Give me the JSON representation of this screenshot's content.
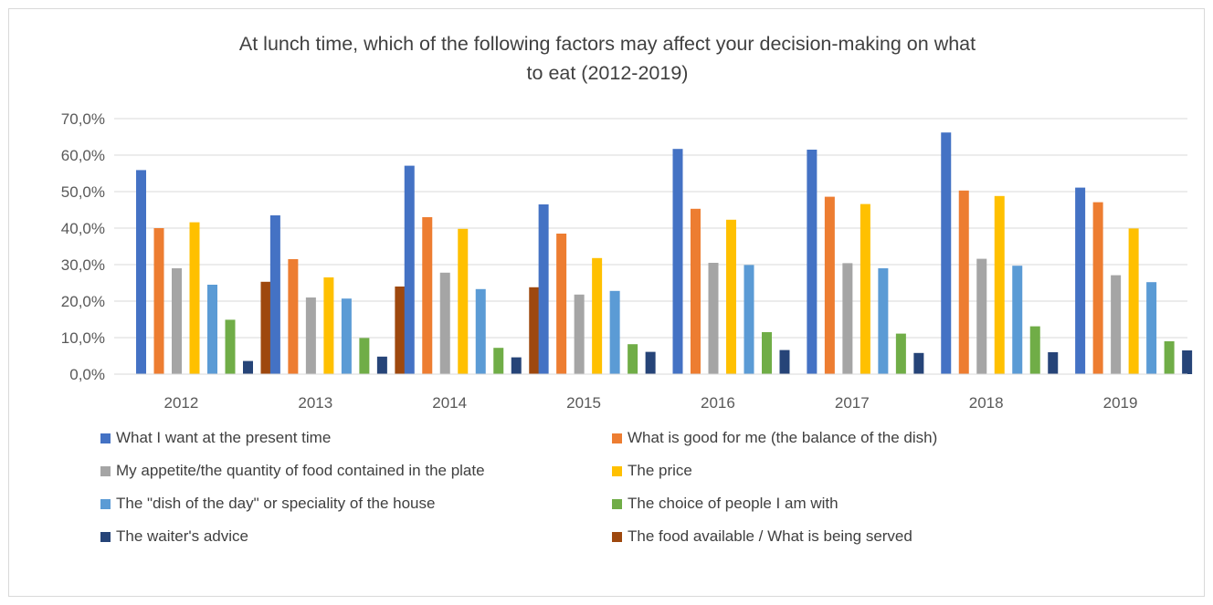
{
  "chart_data": {
    "type": "bar",
    "title": "At lunch time, which of the following factors may affect your decision-making on what to eat (2012-2019)",
    "title_lines": [
      "At lunch time, which of the following factors may affect your decision-making on what",
      "to eat (2012-2019)"
    ],
    "categories": [
      "2012",
      "2013",
      "2014",
      "2015",
      "2016",
      "2017",
      "2018",
      "2019"
    ],
    "ylim": [
      0,
      70
    ],
    "ytick_values": [
      0,
      10,
      20,
      30,
      40,
      50,
      60,
      70
    ],
    "ytick_labels": [
      "0,0%",
      "10,0%",
      "20,0%",
      "30,0%",
      "40,0%",
      "50,0%",
      "60,0%",
      "70,0%"
    ],
    "grid": true,
    "legend_position": "bottom",
    "series": [
      {
        "name": "What I want at the present time",
        "color": "#4472c4",
        "values": [
          55.9,
          43.5,
          57.1,
          46.5,
          61.7,
          61.5,
          66.2,
          51.1
        ]
      },
      {
        "name": "What is good for me (the balance of the dish)",
        "color": "#ed7d31",
        "values": [
          40.0,
          31.5,
          43.0,
          38.5,
          45.3,
          48.6,
          50.3,
          47.1
        ]
      },
      {
        "name": "My appetite/the quantity of food contained in the plate",
        "color": "#a5a5a5",
        "values": [
          29.0,
          21.0,
          27.8,
          21.8,
          30.5,
          30.4,
          31.6,
          27.1
        ]
      },
      {
        "name": "The price",
        "color": "#ffc000",
        "values": [
          41.6,
          26.5,
          39.8,
          31.8,
          42.3,
          46.6,
          48.8,
          39.9
        ]
      },
      {
        "name": "The \"dish of the day\" or speciality of the house",
        "color": "#5b9bd5",
        "values": [
          24.5,
          20.7,
          23.3,
          22.8,
          29.9,
          29.0,
          29.7,
          25.2
        ]
      },
      {
        "name": "The choice of people I am with",
        "color": "#70ad47",
        "values": [
          14.9,
          9.9,
          7.2,
          8.2,
          11.5,
          11.1,
          13.1,
          9.0
        ]
      },
      {
        "name": "The waiter's advice",
        "color": "#264478",
        "values": [
          3.6,
          4.8,
          4.6,
          6.1,
          6.6,
          5.8,
          6.0,
          6.5
        ]
      },
      {
        "name": "The food available / What is being served",
        "color": "#9e480e",
        "values": [
          25.3,
          24.0,
          23.8,
          null,
          null,
          null,
          null,
          null
        ]
      }
    ]
  }
}
